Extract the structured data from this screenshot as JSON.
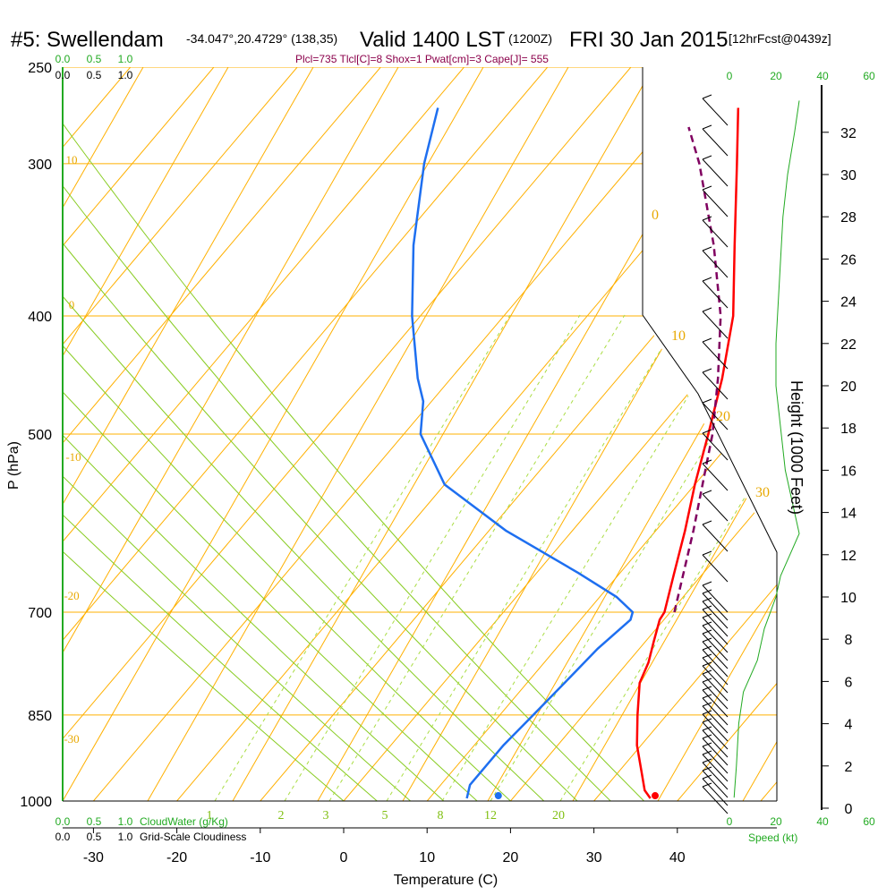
{
  "header": {
    "station": "#5: Swellendam",
    "coords": "-34.047°,20.4729° (138,35)",
    "valid": "Valid 1400 LST",
    "utc": "(1200Z)",
    "date": "FRI 30 Jan 2015",
    "forecast": "[12hrFcst@0439z]",
    "indices": "Plcl=735 Tlcl[C]=8 Shox=1 Pwat[cm]=3 Cape[J]= 555"
  },
  "axes": {
    "pressure_label": "P (hPa)",
    "temperature_label": "Temperature (C)",
    "height_label": "Height (1000 Feet)",
    "speed_label": "Speed (kt)",
    "cloudwater_label": "CloudWater (g/Kg)",
    "cloudiness_label": "Grid-Scale Cloudiness"
  },
  "colors": {
    "temperature": "#ff0000",
    "dewpoint": "#1e6ff0",
    "parcel": "#800060",
    "isotherm": "#ffb000",
    "dry_adiabat": "#ffb000",
    "moist_adiabat": "#88cc22",
    "mixing_ratio": "#aadd44",
    "speed_profile": "#22aa22"
  },
  "chart_data": {
    "type": "skew-t",
    "pressure_ticks": [
      "250",
      "300",
      "400",
      "500",
      "700",
      "850",
      "1000"
    ],
    "temperature_ticks": [
      "-30",
      "-20",
      "-10",
      "0",
      "10",
      "20",
      "30",
      "40"
    ],
    "height_ticks": [
      "0",
      "2",
      "4",
      "6",
      "8",
      "10",
      "12",
      "14",
      "16",
      "18",
      "20",
      "22",
      "24",
      "26",
      "28",
      "30",
      "32"
    ],
    "speed_ticks_top": [
      "0",
      "20",
      "40",
      "60"
    ],
    "speed_ticks_bottom": [
      "0",
      "20",
      "40",
      "60"
    ],
    "cloud_ticks": [
      "0.0",
      "0.5",
      "1.0"
    ],
    "isotherm_labels": [
      "-10",
      "0",
      "10",
      "20",
      "30"
    ],
    "dry_adiabat_labels": [
      "10",
      "0",
      "-10",
      "-20",
      "-30"
    ],
    "mixing_ratio_labels": [
      "1",
      "2",
      "3",
      "5",
      "8",
      "12",
      "20"
    ],
    "temperature_profile": [
      {
        "p": 995,
        "t": 36.5
      },
      {
        "p": 980,
        "t": 35.0
      },
      {
        "p": 950,
        "t": 33.0
      },
      {
        "p": 900,
        "t": 29.5
      },
      {
        "p": 850,
        "t": 26.5
      },
      {
        "p": 800,
        "t": 23.5
      },
      {
        "p": 770,
        "t": 22.5
      },
      {
        "p": 740,
        "t": 21.0
      },
      {
        "p": 710,
        "t": 19.5
      },
      {
        "p": 700,
        "t": 19.3
      },
      {
        "p": 650,
        "t": 16.5
      },
      {
        "p": 600,
        "t": 13.5
      },
      {
        "p": 550,
        "t": 10.0
      },
      {
        "p": 500,
        "t": 6.5
      },
      {
        "p": 450,
        "t": 2.5
      },
      {
        "p": 400,
        "t": -2.5
      },
      {
        "p": 350,
        "t": -9.5
      },
      {
        "p": 300,
        "t": -17.5
      },
      {
        "p": 270,
        "t": -23.0
      }
    ],
    "dewpoint_profile": [
      {
        "p": 995,
        "t": 14.5
      },
      {
        "p": 970,
        "t": 13.5
      },
      {
        "p": 900,
        "t": 13.5
      },
      {
        "p": 850,
        "t": 14.0
      },
      {
        "p": 800,
        "t": 14.5
      },
      {
        "p": 750,
        "t": 15.0
      },
      {
        "p": 710,
        "t": 16.0
      },
      {
        "p": 700,
        "t": 15.5
      },
      {
        "p": 680,
        "t": 12.0
      },
      {
        "p": 650,
        "t": 5.0
      },
      {
        "p": 600,
        "t": -8.0
      },
      {
        "p": 550,
        "t": -20.0
      },
      {
        "p": 500,
        "t": -28.0
      },
      {
        "p": 470,
        "t": -31.0
      },
      {
        "p": 450,
        "t": -34.0
      },
      {
        "p": 400,
        "t": -41.0
      },
      {
        "p": 350,
        "t": -48.0
      },
      {
        "p": 300,
        "t": -55.0
      },
      {
        "p": 270,
        "t": -59.0
      }
    ],
    "parcel_profile": [
      {
        "p": 700,
        "t": 20.5
      },
      {
        "p": 600,
        "t": 14.5
      },
      {
        "p": 500,
        "t": 7.0
      },
      {
        "p": 450,
        "t": 2.0
      },
      {
        "p": 400,
        "t": -4.0
      },
      {
        "p": 350,
        "t": -12.0
      },
      {
        "p": 300,
        "t": -22.0
      },
      {
        "p": 280,
        "t": -27.0
      }
    ],
    "surface_temperature": 36.8,
    "surface_dewpoint": 18.0,
    "wind_speed_profile": [
      {
        "h": 0.5,
        "s": 2
      },
      {
        "h": 2,
        "s": 3
      },
      {
        "h": 4,
        "s": 4
      },
      {
        "h": 5.5,
        "s": 6
      },
      {
        "h": 7,
        "s": 12
      },
      {
        "h": 8.5,
        "s": 15
      },
      {
        "h": 10,
        "s": 20
      },
      {
        "h": 11,
        "s": 22
      },
      {
        "h": 12,
        "s": 26
      },
      {
        "h": 13,
        "s": 30
      },
      {
        "h": 14,
        "s": 28
      },
      {
        "h": 16,
        "s": 24
      },
      {
        "h": 18,
        "s": 22
      },
      {
        "h": 20,
        "s": 20
      },
      {
        "h": 22,
        "s": 20
      },
      {
        "h": 24,
        "s": 21
      },
      {
        "h": 26,
        "s": 22
      },
      {
        "h": 28,
        "s": 23
      },
      {
        "h": 30,
        "s": 25
      },
      {
        "h": 32,
        "s": 28
      },
      {
        "h": 33.5,
        "s": 30
      }
    ],
    "grid": true
  }
}
